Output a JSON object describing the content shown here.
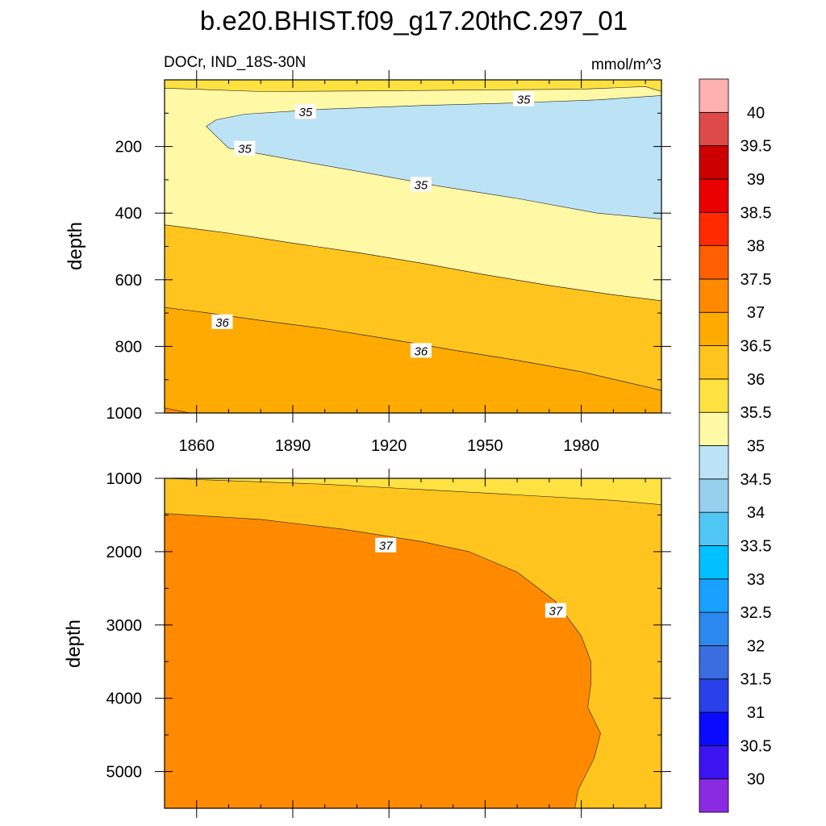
{
  "title": "b.e20.BHIST.f09_g17.20thC.297_01",
  "chart_data": {
    "type": "contour",
    "variable": "DOCr, IND_18S-30N",
    "units": "mmol/m^3",
    "colorbar": {
      "levels": [
        30,
        30.5,
        31,
        31.5,
        32,
        32.5,
        33,
        33.5,
        34,
        34.5,
        35,
        35.5,
        36,
        36.5,
        37,
        37.5,
        38,
        38.5,
        39,
        39.5,
        40
      ],
      "colors": [
        "#8a2be2",
        "#3d14f0",
        "#0a0aff",
        "#2a40e8",
        "#3a6ee0",
        "#2a88ee",
        "#1aa0ff",
        "#00c0ff",
        "#50c6f5",
        "#96d0ec",
        "#bce3f5",
        "#fff9a5",
        "#ffe142",
        "#ffc41e",
        "#ffaa00",
        "#ff8a00",
        "#ff5f00",
        "#ff2a00",
        "#ea0000",
        "#cc0000",
        "#de4a4a",
        "#ffb0b0"
      ]
    },
    "x_ticks": [
      1860,
      1890,
      1920,
      1950,
      1980
    ],
    "xlim": [
      1850,
      2005
    ],
    "panels": [
      {
        "name": "upper",
        "ylabel": "depth",
        "ylim": [
          0,
          1000
        ],
        "y_ticks": [
          200,
          400,
          600,
          800,
          1000
        ],
        "regions": [
          {
            "fill_level": 35.5,
            "polygon": [
              [
                1850,
                0
              ],
              [
                2005,
                0
              ],
              [
                2005,
                1000
              ],
              [
                1850,
                1000
              ]
            ]
          },
          {
            "fill_level": 36.5,
            "polygon": [
              [
                1850,
                683
              ],
              [
                1860,
                695
              ],
              [
                1880,
                722
              ],
              [
                1900,
                747
              ],
              [
                1920,
                778
              ],
              [
                1940,
                811
              ],
              [
                1960,
                842
              ],
              [
                1980,
                876
              ],
              [
                2005,
                932
              ],
              [
                2005,
                1000
              ],
              [
                1850,
                1000
              ]
            ]
          },
          {
            "fill_level": 37,
            "polygon": [
              [
                1850,
                985
              ],
              [
                1858,
                1000
              ],
              [
                1850,
                1000
              ]
            ]
          },
          {
            "fill_level": 36,
            "polygon": [
              [
                1850,
                435
              ],
              [
                1870,
                460
              ],
              [
                1890,
                490
              ],
              [
                1910,
                518
              ],
              [
                1930,
                550
              ],
              [
                1950,
                585
              ],
              [
                1970,
                617
              ],
              [
                1990,
                645
              ],
              [
                2005,
                663
              ],
              [
                2005,
                932
              ],
              [
                1980,
                876
              ],
              [
                1960,
                842
              ],
              [
                1940,
                811
              ],
              [
                1920,
                778
              ],
              [
                1900,
                747
              ],
              [
                1880,
                722
              ],
              [
                1860,
                695
              ],
              [
                1850,
                683
              ]
            ]
          },
          {
            "fill_level": 35,
            "polygon": [
              [
                1850,
                25
              ],
              [
                1880,
                35
              ],
              [
                1920,
                33
              ],
              [
                1950,
                30
              ],
              [
                1980,
                28
              ],
              [
                2000,
                20
              ],
              [
                2005,
                35
              ],
              [
                2005,
                663
              ],
              [
                1990,
                645
              ],
              [
                1970,
                617
              ],
              [
                1950,
                585
              ],
              [
                1930,
                550
              ],
              [
                1910,
                518
              ],
              [
                1890,
                490
              ],
              [
                1870,
                460
              ],
              [
                1850,
                435
              ]
            ]
          },
          {
            "fill_level": 34.5,
            "polygon": [
              [
                1863,
                140
              ],
              [
                1866,
                120
              ],
              [
                1875,
                103
              ],
              [
                1900,
                88
              ],
              [
                1930,
                77
              ],
              [
                1960,
                69
              ],
              [
                1985,
                60
              ],
              [
                2005,
                47
              ],
              [
                2005,
                418
              ],
              [
                1985,
                400
              ],
              [
                1960,
                356
              ],
              [
                1935,
                318
              ],
              [
                1910,
                274
              ],
              [
                1890,
                240
              ],
              [
                1870,
                205
              ]
            ]
          }
        ],
        "contour_labels": [
          {
            "text": "35",
            "x": 1894,
            "y": 95
          },
          {
            "text": "35",
            "x": 1962,
            "y": 57
          },
          {
            "text": "35",
            "x": 1875,
            "y": 205
          },
          {
            "text": "35",
            "x": 1930,
            "y": 313
          },
          {
            "text": "36",
            "x": 1868,
            "y": 726
          },
          {
            "text": "36",
            "x": 1930,
            "y": 812
          }
        ]
      },
      {
        "name": "lower",
        "ylabel": "depth",
        "ylim": [
          1000,
          5500
        ],
        "y_ticks": [
          1000,
          2000,
          3000,
          4000,
          5000
        ],
        "regions": [
          {
            "fill_level": 35.5,
            "polygon": [
              [
                1850,
                1000
              ],
              [
                2005,
                1000
              ],
              [
                2005,
                5500
              ],
              [
                1850,
                5500
              ]
            ]
          },
          {
            "fill_level": 36,
            "polygon": [
              [
                1850,
                1000
              ],
              [
                1900,
                1080
              ],
              [
                1950,
                1200
              ],
              [
                1990,
                1300
              ],
              [
                2005,
                1360
              ],
              [
                2005,
                5500
              ],
              [
                1850,
                5500
              ]
            ]
          },
          {
            "fill_level": 37,
            "polygon": [
              [
                1850,
                1480
              ],
              [
                1880,
                1560
              ],
              [
                1905,
                1690
              ],
              [
                1930,
                1860
              ],
              [
                1945,
                2000
              ],
              [
                1960,
                2280
              ],
              [
                1972,
                2680
              ],
              [
                1980,
                3150
              ],
              [
                1983,
                3500
              ],
              [
                1983,
                3800
              ],
              [
                1982,
                4120
              ],
              [
                1986,
                4480
              ],
              [
                1984,
                4820
              ],
              [
                1979,
                5250
              ],
              [
                1978,
                5500
              ],
              [
                1850,
                5500
              ]
            ]
          }
        ],
        "contour_labels": [
          {
            "text": "37",
            "x": 1919,
            "y": 1910
          },
          {
            "text": "37",
            "x": 1972,
            "y": 2800
          }
        ]
      }
    ]
  }
}
